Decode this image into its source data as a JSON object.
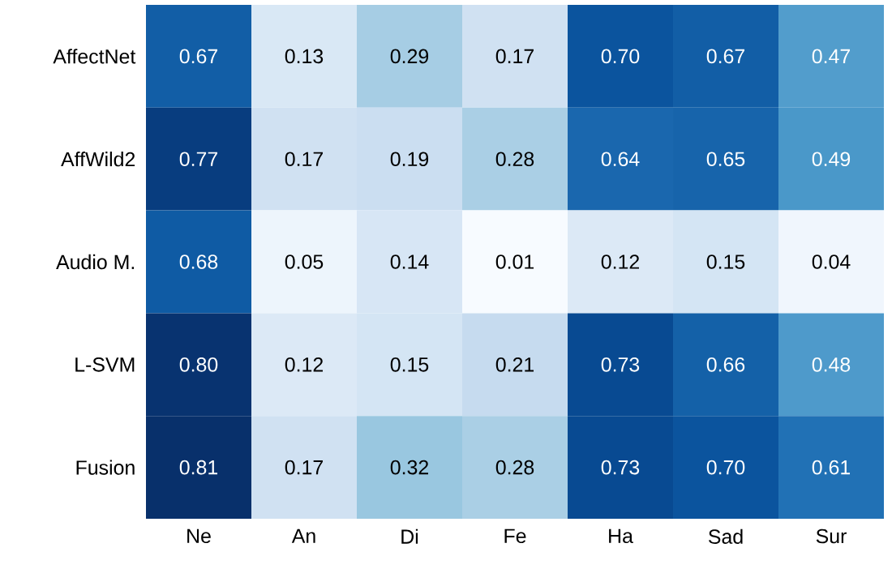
{
  "chart_data": {
    "type": "heatmap",
    "categories": [
      "Ne",
      "An",
      "Di",
      "Fe",
      "Ha",
      "Sad",
      "Sur"
    ],
    "y_categories": [
      "AffectNet",
      "AffWild2",
      "Audio M.",
      "L-SVM",
      "Fusion"
    ],
    "cells": [
      [
        0.67,
        0.13,
        0.29,
        0.17,
        0.7,
        0.67,
        0.47
      ],
      [
        0.77,
        0.17,
        0.19,
        0.28,
        0.64,
        0.65,
        0.49
      ],
      [
        0.68,
        0.05,
        0.14,
        0.01,
        0.12,
        0.15,
        0.04
      ],
      [
        0.8,
        0.12,
        0.15,
        0.21,
        0.73,
        0.66,
        0.48
      ],
      [
        0.81,
        0.17,
        0.32,
        0.28,
        0.73,
        0.7,
        0.61
      ]
    ],
    "cell_labels": [
      [
        "0.67",
        "0.13",
        "0.29",
        "0.17",
        "0.70",
        "0.67",
        "0.47"
      ],
      [
        "0.77",
        "0.17",
        "0.19",
        "0.28",
        "0.64",
        "0.65",
        "0.49"
      ],
      [
        "0.68",
        "0.05",
        "0.14",
        "0.01",
        "0.12",
        "0.15",
        "0.04"
      ],
      [
        "0.80",
        "0.12",
        "0.15",
        "0.21",
        "0.73",
        "0.66",
        "0.48"
      ],
      [
        "0.81",
        "0.17",
        "0.32",
        "0.28",
        "0.73",
        "0.70",
        "0.61"
      ]
    ]
  }
}
